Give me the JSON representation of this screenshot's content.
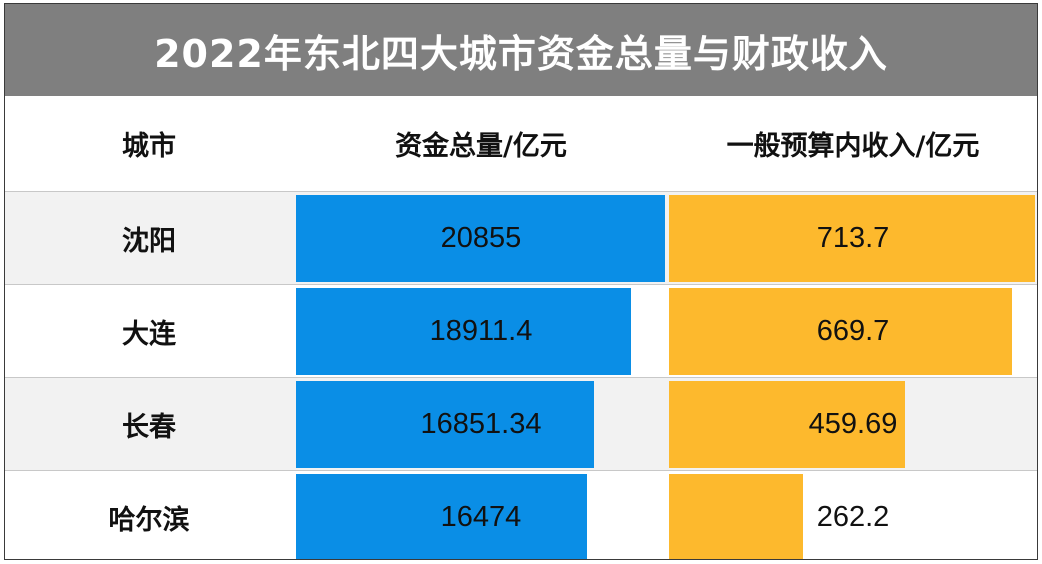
{
  "title": "2022年东北四大城市资金总量与财政收入",
  "colors": {
    "title_bg": "#7f7f7f",
    "stripe": "#f2f2f2",
    "fund_bar": "#0a8ee6",
    "revenue_bar": "#fdb92d"
  },
  "headers": {
    "city": "城市",
    "fund": "资金总量/亿元",
    "revenue": "一般预算内收入/亿元"
  },
  "rows": [
    {
      "city": "沈阳",
      "fund": "20855",
      "revenue": "713.7"
    },
    {
      "city": "大连",
      "fund": "18911.4",
      "revenue": "669.7"
    },
    {
      "city": "长春",
      "fund": "16851.34",
      "revenue": "459.69"
    },
    {
      "city": "哈尔滨",
      "fund": "16474",
      "revenue": "262.2"
    }
  ],
  "chart_data": {
    "type": "table",
    "title": "2022年东北四大城市资金总量与财政收入",
    "categories": [
      "沈阳",
      "大连",
      "长春",
      "哈尔滨"
    ],
    "series": [
      {
        "name": "资金总量/亿元",
        "values": [
          20855,
          18911.4,
          16851.34,
          16474
        ]
      },
      {
        "name": "一般预算内收入/亿元",
        "values": [
          713.7,
          669.7,
          459.69,
          262.2
        ]
      }
    ]
  }
}
